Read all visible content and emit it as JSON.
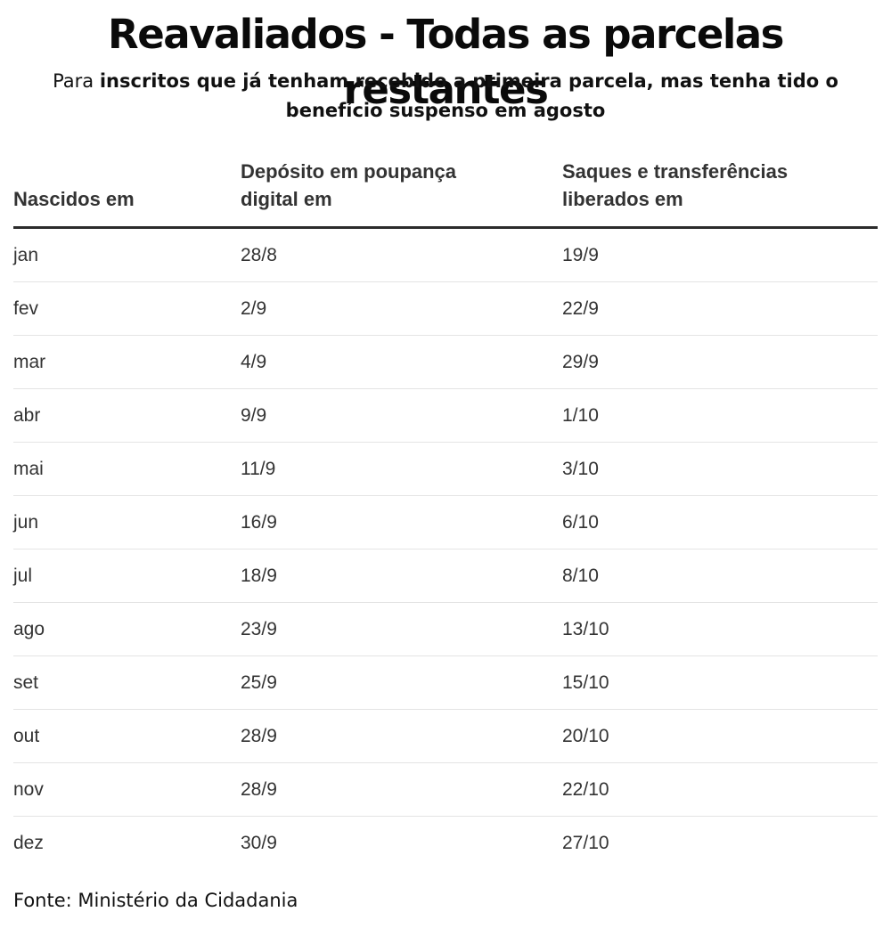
{
  "title": "Reavaliados - Todas as parcelas restantes",
  "subtitle": {
    "prefix": "Para ",
    "bold": "inscritos que já tenham recebido a primeira parcela, mas tenha tido o benefício suspenso em agosto"
  },
  "table": {
    "headers": [
      "Nascidos em",
      "Depósito em poupança digital em",
      "Saques e transferências liberados em"
    ],
    "rows": [
      [
        "jan",
        "28/8",
        "19/9"
      ],
      [
        "fev",
        "2/9",
        "22/9"
      ],
      [
        "mar",
        "4/9",
        "29/9"
      ],
      [
        "abr",
        "9/9",
        "1/10"
      ],
      [
        "mai",
        "11/9",
        "3/10"
      ],
      [
        "jun",
        "16/9",
        "6/10"
      ],
      [
        "jul",
        "18/9",
        "8/10"
      ],
      [
        "ago",
        "23/9",
        "13/10"
      ],
      [
        "set",
        "25/9",
        "15/10"
      ],
      [
        "out",
        "28/9",
        "20/10"
      ],
      [
        "nov",
        "28/9",
        "22/10"
      ],
      [
        "dez",
        "30/9",
        "27/10"
      ]
    ]
  },
  "source": "Fonte: Ministério da Cidadania"
}
